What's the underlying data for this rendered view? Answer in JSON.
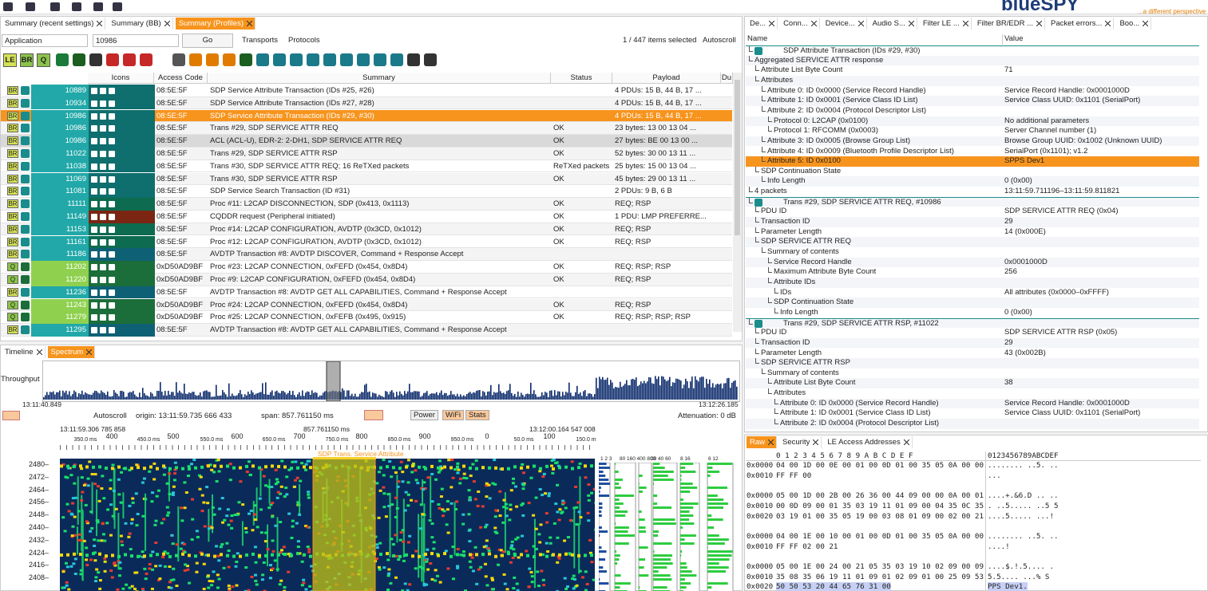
{
  "header": {
    "logo": "blueSPY",
    "tagline": "...a different perspective"
  },
  "summary": {
    "tabs": [
      "Summary (recent settings)",
      "Summary (BB)",
      "Summary (Profiles)"
    ],
    "filter": {
      "field": "Application",
      "value": "10986",
      "go": "Go",
      "transports": "Transports",
      "protocols": "Protocols",
      "selection": "1 / 447 items selected",
      "autoscroll": "Autoscroll"
    },
    "toolbar": [
      "LE",
      "BR",
      "Q"
    ],
    "columns": [
      "Icons",
      "Access Code",
      "Summary",
      "Status",
      "Payload",
      "Du"
    ],
    "rows": [
      {
        "badge": "BR",
        "id": 10889,
        "access": "08:5E:5F",
        "summary": "SDP Service Attribute Transaction (IDs #25, #26)",
        "payload": "4 PDUs: 15 B, 44 B, 17 ..."
      },
      {
        "badge": "BR",
        "id": 10934,
        "access": "08:5E:5F",
        "summary": "SDP Service Attribute Transaction (IDs #27, #28)",
        "payload": "4 PDUs: 15 B, 44 B, 17 ..."
      },
      {
        "badge": "BR",
        "id": 10986,
        "access": "08:5E:5F",
        "summary": "SDP Service Attribute Transaction (IDs #29, #30)",
        "payload": "4 PDUs: 15 B, 44 B, 17 ..."
      },
      {
        "badge": "BR",
        "id": 10986,
        "access": "08:5E:5F",
        "summary": "Trans #29, SDP SERVICE ATTR REQ",
        "status": "OK",
        "payload": "23 bytes: 13 00 13 04 ..."
      },
      {
        "badge": "BR",
        "id": 10986,
        "access": "08:5E:5F",
        "summary": "ACL (ACL-U), EDR-2: 2-DH1, SDP SERVICE ATTR REQ",
        "status": "OK",
        "payload": "27 bytes: BE 00 13 00 ..."
      },
      {
        "badge": "BR",
        "id": 11022,
        "access": "08:5E:5F",
        "summary": "Trans #29, SDP SERVICE ATTR RSP",
        "status": "OK",
        "payload": "52 bytes: 30 00 13 11 ..."
      },
      {
        "badge": "BR",
        "id": 11038,
        "access": "08:5E:5F",
        "summary": "Trans #30, SDP SERVICE ATTR REQ; 16 ReTXed packets",
        "status": "ReTXed packets",
        "payload": "25 bytes: 15 00 13 04 ..."
      },
      {
        "badge": "BR",
        "id": 11069,
        "access": "08:5E:5F",
        "summary": "Trans #30, SDP SERVICE ATTR RSP",
        "status": "OK",
        "payload": "45 bytes: 29 00 13 11 ..."
      },
      {
        "badge": "BR",
        "id": 11081,
        "access": "08:5E:5F",
        "summary": "SDP Service Search Transaction (ID #31)",
        "payload": "2 PDUs: 9 B, 6 B"
      },
      {
        "badge": "BR",
        "id": 11111,
        "access": "08:5E:5F",
        "summary": "Proc #11: L2CAP DISCONNECTION, SDP (0x413, 0x1113)",
        "status": "OK",
        "payload": "REQ; RSP"
      },
      {
        "badge": "BR",
        "id": 11149,
        "access": "08:5E:5F",
        "summary": "CQDDR request (Peripheral initiated)",
        "status": "OK",
        "payload": "1 PDU: LMP PREFERRE..."
      },
      {
        "badge": "BR",
        "id": 11153,
        "access": "08:5E:5F",
        "summary": "Proc #14: L2CAP CONFIGURATION, AVDTP (0x3CD, 0x1012)",
        "status": "OK",
        "payload": "REQ; RSP"
      },
      {
        "badge": "BR",
        "id": 11161,
        "access": "08:5E:5F",
        "summary": "Proc #12: L2CAP CONFIGURATION, AVDTP (0x3CD, 0x1012)",
        "status": "OK",
        "payload": "REQ; RSP"
      },
      {
        "badge": "BR",
        "id": 11186,
        "access": "08:5E:5F",
        "summary": "AVDTP Transaction #8: AVDTP DISCOVER, Command + Response Accept"
      },
      {
        "badge": "Q",
        "id": 11202,
        "access": "0xD50AD9BF",
        "summary": "Proc #23: L2CAP CONNECTION, 0xFEFD (0x454, 0x8D4)",
        "status": "OK",
        "payload": "REQ; RSP; RSP"
      },
      {
        "badge": "Q",
        "id": 11220,
        "access": "0xD50AD9BF",
        "summary": "Proc #9: L2CAP CONFIGURATION, 0xFEFD (0x454, 0x8D4)",
        "status": "OK",
        "payload": "REQ; RSP"
      },
      {
        "badge": "BR",
        "id": 11236,
        "access": "08:5E:5F",
        "summary": "AVDTP Transaction #8: AVDTP GET ALL CAPABILITIES, Command + Response Accept"
      },
      {
        "badge": "Q",
        "id": 11243,
        "access": "0xD50AD9BF",
        "summary": "Proc #24: L2CAP CONNECTION, 0xFEFD (0x454, 0x8D4)",
        "status": "OK",
        "payload": "REQ; RSP"
      },
      {
        "badge": "Q",
        "id": 11279,
        "access": "0xD50AD9BF",
        "summary": "Proc #25: L2CAP CONNECTION, 0xFEFB (0x495, 0x915)",
        "status": "OK",
        "payload": "REQ; RSP; RSP; RSP"
      },
      {
        "badge": "BR",
        "id": 11295,
        "access": "08:5E:5F",
        "summary": "AVDTP Transaction #8: AVDTP GET ALL CAPABILITIES, Command + Response Accept"
      }
    ]
  },
  "spectrum": {
    "tabs": [
      "Timeline",
      "Spectrum"
    ],
    "throughput_label": "Throughput",
    "start": "13:11:40.849",
    "end": "13:12:26.185",
    "autoscroll": "Autoscroll",
    "origin": "origin: 13:11:59.735 666 433",
    "span_label": "span:",
    "span": "857.761150 ms",
    "buttons": [
      "Power",
      "WiFi",
      "Stats"
    ],
    "attenuation": "Attenuation: 0 dB",
    "ruler_start": "13:11:59.306 785 858",
    "ruler_span": "857.761150 ms",
    "ruler_end": "13:12:00.164 547 008",
    "major": [
      400,
      500,
      600,
      700,
      800,
      900,
      0,
      100
    ],
    "minor": [
      "350.0 ms",
      "450.0 ms",
      "550.0 ms",
      "650.0 ms",
      "750.0 ms",
      "850.0 ms",
      "950.0 ms",
      "50.0 ms",
      "150.0 m"
    ],
    "frequencies": [
      "2480–",
      "2472–",
      "2464–",
      "2456–",
      "2448–",
      "2440–",
      "2432–",
      "2424–",
      "2416–",
      "2408–"
    ],
    "overlay": "SDP Trans. Service Attribute",
    "strip_labels": [
      "1 2 3",
      "80 160 400 800",
      "20 40 60",
      "8 16",
      "6 12"
    ]
  },
  "details": {
    "tabs": [
      "De...",
      "Conn...",
      "Device...",
      "Audio S...",
      "Filter LE ...",
      "Filter BR/EDR ...",
      "Packet errors...",
      "Boo..."
    ],
    "columns": [
      "Name",
      "Value"
    ],
    "rows": [
      {
        "name": "SDP Attribute Transaction (IDs #29, #30)"
      },
      {
        "name": "Aggregated SERVICE ATTR response"
      },
      {
        "name": "Attribute List Byte Count",
        "value": "71"
      },
      {
        "name": "Attributes"
      },
      {
        "name": "Attribute 0: ID 0x0000 (Service Record Handle)",
        "value": "Service Record Handle: 0x0001000D"
      },
      {
        "name": "Attribute 1: ID 0x0001 (Service Class ID List)",
        "value": "Service Class UUID: 0x1101 (SerialPort)"
      },
      {
        "name": "Attribute 2: ID 0x0004 (Protocol Descriptor List)"
      },
      {
        "name": "Protocol 0: L2CAP (0x0100)",
        "value": "No additional parameters"
      },
      {
        "name": "Protocol 1: RFCOMM (0x0003)",
        "value": "Server Channel number (1)"
      },
      {
        "name": "Attribute 3: ID 0x0005 (Browse Group List)",
        "value": "Browse Group UUID: 0x1002 (Unknown UUID)"
      },
      {
        "name": "Attribute 4: ID 0x0009 (Bluetooth Profile Descriptor List)",
        "value": "SerialPort (0x1101); v1.2"
      },
      {
        "name": "Attribute 5: ID 0x0100",
        "value": "SPPS Dev1"
      },
      {
        "name": "SDP Continuation State"
      },
      {
        "name": "Info Length",
        "value": "0 (0x00)"
      },
      {
        "name": "4 packets",
        "value": "13:11:59.711196–13:11:59.811821"
      },
      {
        "name": "Trans #29, SDP SERVICE ATTR REQ, #10986"
      },
      {
        "name": "PDU ID",
        "value": "SDP SERVICE ATTR REQ (0x04)"
      },
      {
        "name": "Transaction ID",
        "value": "29"
      },
      {
        "name": "Parameter Length",
        "value": "14 (0x000E)"
      },
      {
        "name": "SDP SERVICE ATTR REQ"
      },
      {
        "name": "Summary of contents"
      },
      {
        "name": "Service Record Handle",
        "value": "0x0001000D"
      },
      {
        "name": "Maximum Attribute Byte Count",
        "value": "256"
      },
      {
        "name": "Attribute IDs"
      },
      {
        "name": "IDs",
        "value": "All attributes (0x0000–0xFFFF)"
      },
      {
        "name": "SDP Continuation State"
      },
      {
        "name": "Info Length",
        "value": "0 (0x00)"
      },
      {
        "name": "Trans #29, SDP SERVICE ATTR RSP, #11022"
      },
      {
        "name": "PDU ID",
        "value": "SDP SERVICE ATTR RSP (0x05)"
      },
      {
        "name": "Transaction ID",
        "value": "29"
      },
      {
        "name": "Parameter Length",
        "value": "43 (0x002B)"
      },
      {
        "name": "SDP SERVICE ATTR RSP"
      },
      {
        "name": "Summary of contents"
      },
      {
        "name": "Attribute List Byte Count",
        "value": "38"
      },
      {
        "name": "Attributes"
      },
      {
        "name": "Attribute 0: ID 0x0000 (Service Record Handle)",
        "value": "Service Record Handle: 0x0001000D"
      },
      {
        "name": "Attribute 1: ID 0x0001 (Service Class ID List)",
        "value": "Service Class UUID: 0x1101 (SerialPort)"
      },
      {
        "name": "Attribute 2: ID 0x0004 (Protocol Descriptor List)"
      }
    ]
  },
  "raw": {
    "tabs": [
      "Raw",
      "Security",
      "LE Access Addresses"
    ],
    "header_hex": "0  1  2  3  4  5  6  7  8  9  A  B  C  D  E  F",
    "header_ascii": "0123456789ABCDEF",
    "groups": [
      [
        [
          "0x0000",
          "04 00 1D 00 0E 00 01 00 0D 01 00 35 05 0A 00 00",
          "........ ..5. .."
        ],
        [
          "0x0010",
          "FF FF 00",
          "..."
        ]
      ],
      [
        [
          "0x0000",
          "05 00 1D 00 2B 00 26 36 00 44 09 00 00 0A 00 01",
          "....+.&6.D .. .."
        ],
        [
          "0x0010",
          "00 0D 09 00 01 35 03 19 11 01 09 00 04 35 0C 35",
          ". ..5..... ..5 5"
        ],
        [
          "0x0020",
          "03 19 01 00 35 05 19 00 03 08 01 09 00 02 00 21",
          "....5..... ...!"
        ]
      ],
      [
        [
          "0x0000",
          "04 00 1E 00 10 00 01 00 0D 01 00 35 05 0A 00 00",
          "........ ..5. .."
        ],
        [
          "0x0010",
          "FF FF 02 00 21",
          "....!"
        ]
      ],
      [
        [
          "0x0000",
          "05 00 1E 00 24 00 21 05 35 03 19 10 02 09 00 09",
          "....$.!.5.... ."
        ],
        [
          "0x0010",
          "35 08 35 06 19 11 01 09 01 02 09 01 00 25 09 53",
          "5.5.... ...% S"
        ],
        [
          "0x0020",
          "50 50 53 20 44 65 76 31 00",
          "PPS Dev1."
        ]
      ]
    ]
  }
}
